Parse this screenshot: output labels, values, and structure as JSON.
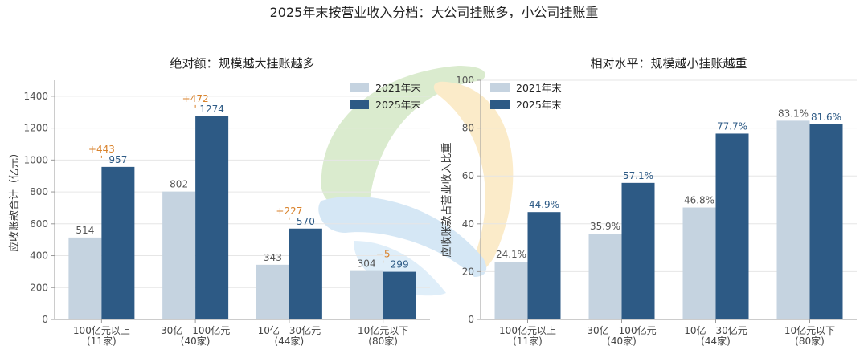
{
  "title": "2025年末按营业收入分档：大公司挂账多，小公司挂账重",
  "colors": {
    "series_2021": "#c5d3e0",
    "series_2025": "#2d5a85",
    "change_label": "#d9822b",
    "value_label_2021": "#555555",
    "value_label_2025": "#2d5a85",
    "axis": "#999999",
    "grid": "#e6e6e6"
  },
  "chart_data": [
    {
      "type": "bar",
      "title": "绝对额：规模越大挂账越多",
      "xlabel": "",
      "ylabel": "应收账款合计（亿元）",
      "ylim": [
        0,
        1500
      ],
      "yticks": [
        0,
        200,
        400,
        600,
        800,
        1000,
        1200,
        1400
      ],
      "grid": true,
      "legend_position": "top-right",
      "categories": [
        "100亿元以上\n(11家)",
        "30亿—100亿元\n(40家)",
        "10亿—30亿元\n(44家)",
        "10亿元以下\n(80家)"
      ],
      "series": [
        {
          "name": "2021年末",
          "values": [
            514,
            802,
            343,
            304
          ],
          "labels": [
            "514",
            "802",
            "343",
            "304"
          ]
        },
        {
          "name": "2025年末",
          "values": [
            957,
            1274,
            570,
            299
          ],
          "labels": [
            "957",
            "1274",
            "570",
            "299"
          ]
        }
      ],
      "change_labels": [
        "+443",
        "+472",
        "+227",
        "−5"
      ]
    },
    {
      "type": "bar",
      "title": "相对水平：规模越小挂账越重",
      "xlabel": "",
      "ylabel": "应收账款占营业收入比重",
      "ylim": [
        0,
        100
      ],
      "yticks": [
        0,
        20,
        40,
        60,
        80,
        100
      ],
      "grid": true,
      "legend_position": "top-left",
      "categories": [
        "100亿元以上\n(11家)",
        "30亿—100亿元\n(40家)",
        "10亿—30亿元\n(44家)",
        "10亿元以下\n(80家)"
      ],
      "series": [
        {
          "name": "2021年末",
          "values": [
            24.1,
            35.9,
            46.8,
            83.1
          ],
          "labels": [
            "24.1%",
            "35.9%",
            "46.8%",
            "83.1%"
          ]
        },
        {
          "name": "2025年末",
          "values": [
            44.9,
            57.1,
            77.7,
            81.6
          ],
          "labels": [
            "44.9%",
            "57.1%",
            "77.7%",
            "81.6%"
          ]
        }
      ]
    }
  ]
}
